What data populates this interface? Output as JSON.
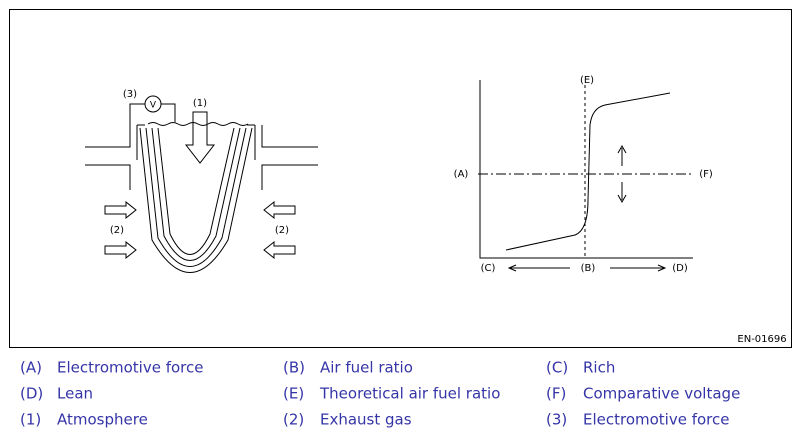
{
  "diagram": {
    "labels": [
      "(3)",
      "V",
      "(1)",
      "(2)",
      "(2)",
      "(A)",
      "(E)",
      "(F)",
      "(C)",
      "(B)",
      "(D)"
    ],
    "code": "EN-01696"
  },
  "legend": {
    "rows": [
      [
        {
          "key": "(A)",
          "text": "Electromotive force"
        },
        {
          "key": "(B)",
          "text": "Air fuel ratio"
        },
        {
          "key": "(C)",
          "text": "Rich"
        }
      ],
      [
        {
          "key": "(D)",
          "text": "Lean"
        },
        {
          "key": "(E)",
          "text": "Theoretical air fuel ratio"
        },
        {
          "key": "(F)",
          "text": "Comparative voltage"
        }
      ],
      [
        {
          "key": "(1)",
          "text": "Atmosphere"
        },
        {
          "key": "(2)",
          "text": "Exhaust gas"
        },
        {
          "key": "(3)",
          "text": "Electromotive force"
        }
      ]
    ]
  }
}
